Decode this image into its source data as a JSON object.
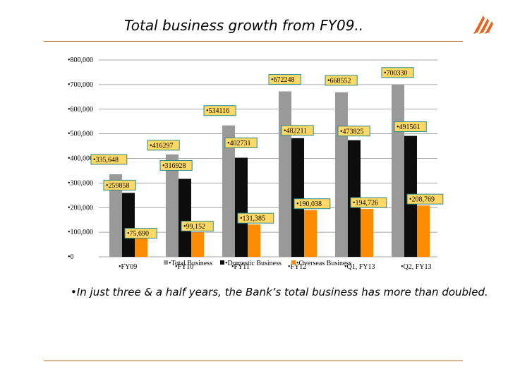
{
  "header": {
    "title": "Total business growth from FY09.."
  },
  "logo": {
    "icon": "bank-of-baroda-logo",
    "color": "#e8641e"
  },
  "caption": "•In just three & a half years, the Bank’s total business has more than doubled.",
  "chart_data": {
    "type": "bar",
    "title": "",
    "xlabel": "",
    "ylabel": "",
    "categories": [
      "•FY09",
      "•FY10",
      "•FY11",
      "•FY12",
      "•Q1, FY13",
      "•Q2, FY13"
    ],
    "series": [
      {
        "name": "•Total Business",
        "color": "#999999",
        "values": [
          335648,
          416297,
          534116,
          672248,
          668552,
          700330
        ],
        "labels": [
          "•335,648",
          "•416297",
          "•534116",
          "•672248",
          "•668552",
          "•700330"
        ]
      },
      {
        "name": "•Domestic Business",
        "color": "#0d0d0d",
        "values": [
          259858,
          316928,
          402731,
          482211,
          473825,
          491561
        ],
        "labels": [
          "•259858",
          "•316928",
          "•402731",
          "•482211",
          "•473825",
          "•491561"
        ]
      },
      {
        "name": "•Overseas Business",
        "color": "#ff8c00",
        "values": [
          75690,
          99152,
          131385,
          190038,
          194726,
          208769
        ],
        "labels": [
          "•75,690",
          "•99,152",
          "•131,385",
          "•190,038",
          "•194,726",
          "•208,769"
        ]
      }
    ],
    "yticks": [
      "•0",
      "•100,000",
      "•200,000",
      "•300,000",
      "•400,000",
      "•500,000",
      "•600,000",
      "•700,000",
      "•800,000"
    ],
    "ylim": [
      0,
      800000
    ],
    "grid": true,
    "legend": "bottom",
    "label_box_fill": "#ffd966",
    "label_box_stroke": "#2e8b8b"
  }
}
